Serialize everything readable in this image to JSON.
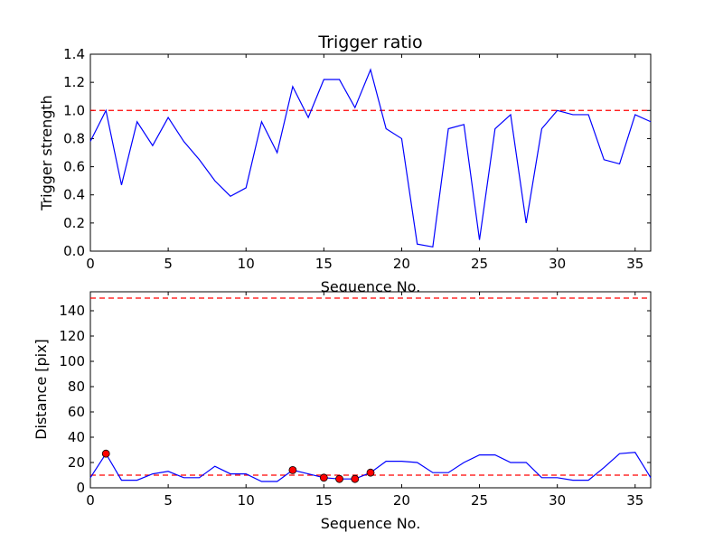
{
  "chart_data": [
    {
      "type": "line",
      "title": "Trigger ratio",
      "xlabel": "Sequence No.",
      "ylabel": "Trigger strength",
      "xlim": [
        0,
        36
      ],
      "ylim": [
        0,
        1.4
      ],
      "xticks": [
        "0",
        "5",
        "10",
        "15",
        "20",
        "25",
        "30",
        "35"
      ],
      "yticks": [
        "0.0",
        "0.2",
        "0.4",
        "0.6",
        "0.8",
        "1.0",
        "1.2",
        "1.4"
      ],
      "grid": false,
      "series": [
        {
          "color": "#0000ff",
          "style": "solid",
          "x": [
            0,
            1,
            2,
            3,
            4,
            5,
            6,
            7,
            8,
            9,
            10,
            11,
            12,
            13,
            14,
            15,
            16,
            17,
            18,
            19,
            20,
            21,
            22,
            23,
            24,
            25,
            26,
            27,
            28,
            29,
            30,
            31,
            32,
            33,
            34,
            35,
            36
          ],
          "values": [
            0.78,
            1.0,
            0.47,
            0.92,
            0.75,
            0.95,
            0.78,
            0.65,
            0.5,
            0.39,
            0.45,
            0.92,
            0.7,
            1.17,
            0.95,
            1.22,
            1.22,
            1.02,
            1.29,
            0.87,
            0.8,
            0.05,
            0.03,
            0.87,
            0.9,
            0.08,
            0.87,
            0.97,
            0.2,
            0.87,
            1.0,
            0.97,
            0.97,
            0.65,
            0.62,
            0.97,
            0.92
          ]
        }
      ],
      "threshold": {
        "value": 1.0,
        "color": "#ff0000",
        "style": "dashed"
      }
    },
    {
      "type": "line",
      "title": "",
      "xlabel": "Sequence No.",
      "ylabel": "Distance [pix]",
      "xlim": [
        0,
        36
      ],
      "ylim": [
        0,
        155
      ],
      "xticks": [
        "0",
        "5",
        "10",
        "15",
        "20",
        "25",
        "30",
        "35"
      ],
      "yticks": [
        "0",
        "20",
        "40",
        "60",
        "80",
        "100",
        "120",
        "140"
      ],
      "grid": false,
      "series": [
        {
          "color": "#0000ff",
          "style": "solid",
          "x": [
            0,
            1,
            2,
            3,
            4,
            5,
            6,
            7,
            8,
            9,
            10,
            11,
            12,
            13,
            14,
            15,
            16,
            17,
            18,
            19,
            20,
            21,
            22,
            23,
            24,
            25,
            26,
            27,
            28,
            29,
            30,
            31,
            32,
            33,
            34,
            35,
            36
          ],
          "values": [
            8,
            27,
            6,
            6,
            11,
            13,
            8,
            8,
            17,
            11,
            11,
            5,
            5,
            14,
            11,
            8,
            7,
            7,
            12,
            21,
            21,
            20,
            12,
            12,
            20,
            26,
            26,
            20,
            20,
            8,
            8,
            6,
            6,
            16,
            27,
            28,
            8
          ]
        }
      ],
      "markers": {
        "color": "#ff0000",
        "x": [
          1,
          13,
          15,
          16,
          17,
          18
        ],
        "values": [
          27,
          14,
          8,
          7,
          7,
          12
        ]
      },
      "thresholds": [
        {
          "value": 10,
          "color": "#ff0000",
          "style": "dashed"
        },
        {
          "value": 150,
          "color": "#ff0000",
          "style": "dashed"
        }
      ]
    }
  ]
}
